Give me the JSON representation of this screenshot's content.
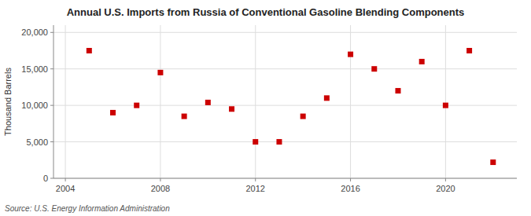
{
  "chart_data": {
    "type": "scatter",
    "title": "Annual U.S. Imports from Russia of Conventional Gasoline Blending Components",
    "y_label": "Thousand Barrels",
    "annotations": [
      "Source: U.S. Energy Information Administration"
    ],
    "x": [
      2005,
      2006,
      2007,
      2008,
      2009,
      2010,
      2011,
      2012,
      2013,
      2014,
      2015,
      2016,
      2017,
      2018,
      2019,
      2020,
      2021,
      2022
    ],
    "values": [
      17500,
      9000,
      10000,
      14500,
      8500,
      10400,
      9500,
      5000,
      5000,
      8500,
      11000,
      17000,
      15000,
      12000,
      16000,
      10000,
      17500,
      2200
    ],
    "color": "#cc0000",
    "marker": "square",
    "xlim": [
      2003.5,
      2023.0
    ],
    "ylim": [
      0,
      21000
    ],
    "xticks": [
      2004,
      2008,
      2012,
      2016,
      2020
    ],
    "yticks": [
      0,
      {
        "value": 5000,
        "label": "5,000"
      },
      {
        "value": 10000,
        "label": "10,000"
      },
      {
        "value": 15000,
        "label": "15,000"
      },
      {
        "value": 20000,
        "label": "20,000"
      }
    ],
    "grid": true
  }
}
